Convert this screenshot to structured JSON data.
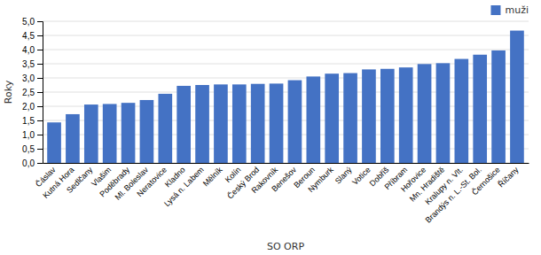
{
  "chart_data": {
    "type": "bar",
    "xlabel": "SO ORP",
    "ylabel": "Roky",
    "categories": [
      "Čáslav",
      "Kutná Hora",
      "Sedlčany",
      "Vlašim",
      "Poděbrady",
      "Ml. Boleslav",
      "Neratovice",
      "Kladno",
      "Lysá n. Labem",
      "Mělník",
      "Kolín",
      "Český Brod",
      "Rakovník",
      "Benešov",
      "Beroun",
      "Nymburk",
      "Slaný",
      "Votice",
      "Dobříš",
      "Příbram",
      "Hořovice",
      "Mn. Hradiště",
      "Kralupy n. Vlt.",
      "Brandýs n. L.-St. Bol.",
      "Černošice",
      "Říčany"
    ],
    "series": [
      {
        "name": "muži",
        "color": "#4472C4",
        "values": [
          1.43,
          1.72,
          2.06,
          2.08,
          2.12,
          2.22,
          2.44,
          2.72,
          2.75,
          2.77,
          2.77,
          2.79,
          2.8,
          2.92,
          3.05,
          3.15,
          3.17,
          3.3,
          3.32,
          3.37,
          3.49,
          3.52,
          3.67,
          3.82,
          3.97,
          4.67
        ]
      }
    ],
    "ylim": [
      0,
      5.0
    ],
    "yticks": [
      {
        "value": 0.0,
        "label": "0,0"
      },
      {
        "value": 0.5,
        "label": "0,5"
      },
      {
        "value": 1.0,
        "label": "1,0"
      },
      {
        "value": 1.5,
        "label": "1,5"
      },
      {
        "value": 2.0,
        "label": "2,0"
      },
      {
        "value": 2.5,
        "label": "2,5"
      },
      {
        "value": 3.0,
        "label": "3,0"
      },
      {
        "value": 3.5,
        "label": "3,5"
      },
      {
        "value": 4.0,
        "label": "4,0"
      },
      {
        "value": 4.5,
        "label": "4,5"
      },
      {
        "value": 5.0,
        "label": "5,0"
      }
    ],
    "grid": true,
    "legend": "upper right"
  }
}
